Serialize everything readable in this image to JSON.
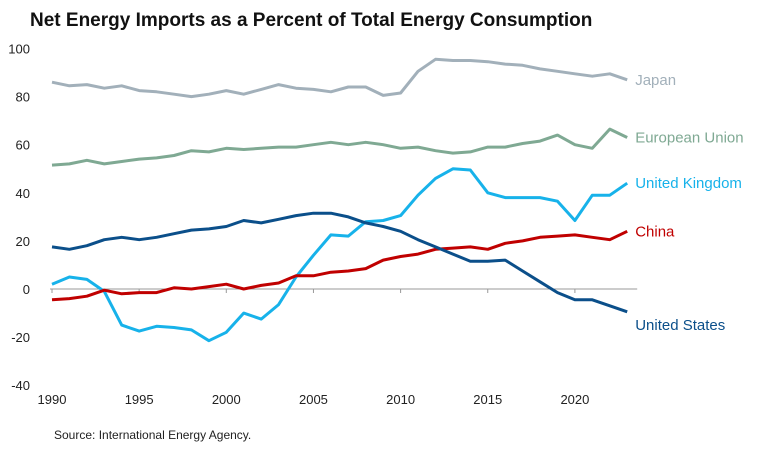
{
  "chart_data": {
    "type": "line",
    "title": "Net Energy Imports as a Percent of Total Energy Consumption",
    "source": "Source: International Energy Agency.",
    "xlabel": "",
    "ylabel": "",
    "xlim": [
      1990,
      2023
    ],
    "ylim": [
      -40,
      100
    ],
    "xticks": [
      1990,
      1995,
      2000,
      2005,
      2010,
      2015,
      2020
    ],
    "yticks": [
      -40,
      -20,
      0,
      20,
      40,
      60,
      80,
      100
    ],
    "grid": false,
    "legend": "inline labels at line ends",
    "x": [
      1990,
      1991,
      1992,
      1993,
      1994,
      1995,
      1996,
      1997,
      1998,
      1999,
      2000,
      2001,
      2002,
      2003,
      2004,
      2005,
      2006,
      2007,
      2008,
      2009,
      2010,
      2011,
      2012,
      2013,
      2014,
      2015,
      2016,
      2017,
      2018,
      2019,
      2020,
      2021,
      2022,
      2023
    ],
    "series": [
      {
        "name": "Japan",
        "color": "#a2b0ba",
        "values": [
          86,
          84.5,
          85,
          83.5,
          84.5,
          82.5,
          82,
          81,
          80,
          81,
          82.5,
          81,
          83,
          85,
          83.5,
          83,
          82,
          84,
          84,
          80.5,
          81.5,
          90.5,
          95.5,
          95,
          95,
          94.5,
          93.5,
          93,
          91.5,
          90.5,
          89.5,
          88.5,
          89.5,
          87
        ]
      },
      {
        "name": "European Union",
        "color": "#7fa993",
        "values": [
          51.5,
          52,
          53.5,
          52,
          53,
          54,
          54.5,
          55.5,
          57.5,
          57,
          58.5,
          58,
          58.5,
          59,
          59,
          60,
          61,
          60,
          61,
          60,
          58.5,
          59,
          57.5,
          56.5,
          57,
          59,
          59,
          60.5,
          61.5,
          64,
          60,
          58.5,
          66.5,
          63
        ]
      },
      {
        "name": "United Kingdom",
        "color": "#17b2ea",
        "values": [
          2,
          5,
          4,
          -1,
          -15,
          -17.5,
          -15.5,
          -16,
          -17,
          -21.5,
          -18,
          -10,
          -12.5,
          -6.5,
          5,
          14,
          22.5,
          22,
          28,
          28.5,
          30.5,
          39,
          46,
          50,
          49.5,
          40,
          38,
          38,
          38,
          36.5,
          28.5,
          39,
          39,
          44
        ]
      },
      {
        "name": "China",
        "color": "#c00000",
        "values": [
          -4.5,
          -4,
          -3,
          -0.5,
          -2,
          -1.5,
          -1.5,
          0.5,
          0,
          1,
          2,
          0,
          1.5,
          2.5,
          5.5,
          5.5,
          7,
          7.5,
          8.5,
          12,
          13.5,
          14.5,
          16.5,
          17,
          17.5,
          16.5,
          19,
          20,
          21.5,
          22,
          22.5,
          21.5,
          20.5,
          24
        ]
      },
      {
        "name": "United States",
        "color": "#0b4f8a",
        "values": [
          17.5,
          16.5,
          18,
          20.5,
          21.5,
          20.5,
          21.5,
          23,
          24.5,
          25,
          26,
          28.5,
          27.5,
          29,
          30.5,
          31.5,
          31.5,
          30,
          27.5,
          26,
          24,
          20.5,
          17.5,
          14.5,
          11.5,
          11.5,
          12,
          7.5,
          3,
          -1.5,
          -4.5,
          -4.5,
          -7,
          -9.5
        ]
      }
    ]
  }
}
